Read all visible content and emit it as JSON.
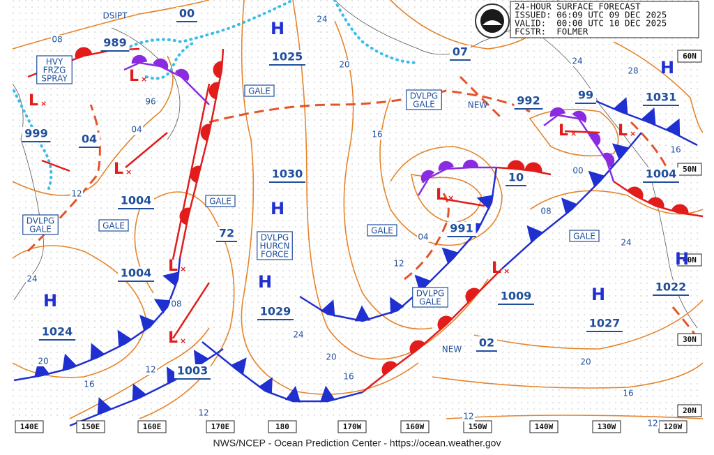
{
  "header": {
    "lines": [
      "24-HOUR SURFACE FORECAST",
      "ISSUED: 06:09 UTC 09 DEC 2025",
      "VALID:  00:00 UTC 10 DEC 2025",
      "FCSTR:  FOLMER"
    ]
  },
  "footer": "NWS/NCEP - Ocean Prediction Center - https://ocean.weather.gov",
  "longitude_labels": [
    "140E",
    "150E",
    "160E",
    "170E",
    "180",
    "170W",
    "160W",
    "150W",
    "140W",
    "130W",
    "120W"
  ],
  "latitude_labels": [
    "60N",
    "50N",
    "40N",
    "30N",
    "20N"
  ],
  "pressure_labels": [
    "989",
    "00",
    "1025",
    "07",
    "992",
    "99",
    "1031",
    "999",
    "04",
    "1004",
    "1030",
    "1004",
    "72",
    "10",
    "991",
    "1004",
    "1009",
    "1029",
    "1027",
    "1022",
    "1024",
    "1003",
    "02"
  ],
  "high_centers": [
    "H",
    "H",
    "H",
    "H",
    "H",
    "H",
    "H"
  ],
  "low_centers": [
    "L",
    "L",
    "L",
    "L",
    "L",
    "L",
    "L",
    "L",
    "L"
  ],
  "warnings": [
    {
      "lines": [
        "HVY",
        "FRZG",
        "SPRAY"
      ]
    },
    {
      "lines": [
        "DSIPT"
      ]
    },
    {
      "lines": [
        "GALE"
      ]
    },
    {
      "lines": [
        "DVLPG",
        "GALE"
      ]
    },
    {
      "lines": [
        "DVLPG",
        "GALE"
      ]
    },
    {
      "lines": [
        "GALE"
      ]
    },
    {
      "lines": [
        "GALE"
      ]
    },
    {
      "lines": [
        "DVLPG",
        "HURCN",
        "FORCE"
      ]
    },
    {
      "lines": [
        "GALE"
      ]
    },
    {
      "lines": [
        "GALE"
      ]
    },
    {
      "lines": [
        "DVLPG",
        "GALE"
      ]
    },
    {
      "lines": [
        "NEW"
      ]
    },
    {
      "lines": [
        "NEW"
      ]
    }
  ],
  "isobar_labels": [
    "08",
    "96",
    "04",
    "12",
    "24",
    "20",
    "16",
    "12",
    "08",
    "12",
    "24",
    "20",
    "16",
    "04",
    "12",
    "24",
    "20",
    "16",
    "12",
    "00",
    "08",
    "24",
    "28",
    "16",
    "20",
    "16",
    "12",
    "24"
  ]
}
